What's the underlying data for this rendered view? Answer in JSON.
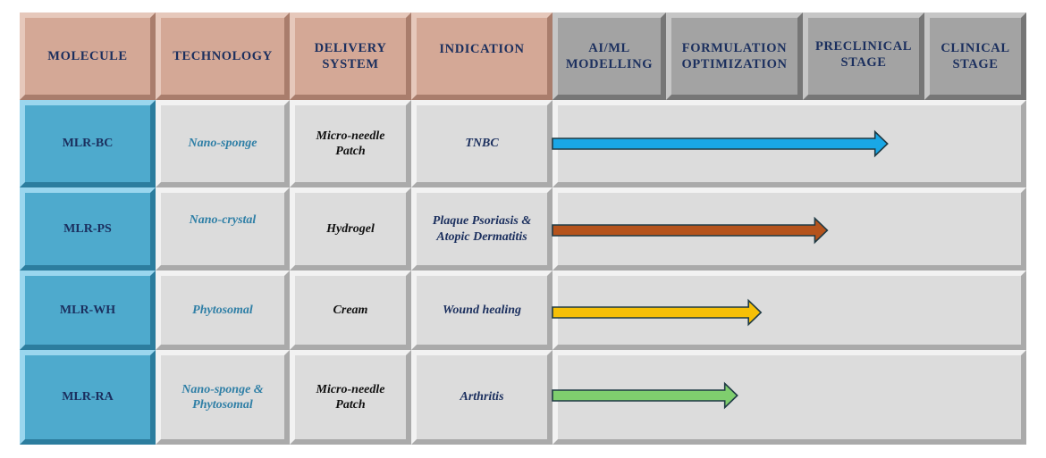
{
  "headers": {
    "molecule": "MOLECULE",
    "technology": "TECHNOLOGY",
    "delivery_system": "DELIVERY\nSYSTEM",
    "indication": "INDICATION",
    "ai_ml": "AI/ML\nMODELLING",
    "formulation": "FORMULATION\nOPTIMIZATION",
    "preclinical": "PRECLINICAL\nSTAGE",
    "clinical": "CLINICAL\nSTAGE"
  },
  "rows": [
    {
      "molecule": "MLR-BC",
      "technology": "Nano-sponge",
      "delivery": "Micro-needle\nPatch",
      "indication": "TNBC",
      "progress": 0.707,
      "color": "#19a7e6"
    },
    {
      "molecule": "MLR-PS",
      "technology": "Nano-crystal",
      "delivery": "Hydrogel",
      "indication": "Plaque Psoriasis &\nAtopic Dermatitis",
      "progress": 0.58,
      "color": "#b5531c"
    },
    {
      "molecule": "MLR-WH",
      "technology": "Phytosomal",
      "delivery": "Cream",
      "indication": "Wound healing",
      "progress": 0.44,
      "color": "#f6c007"
    },
    {
      "molecule": "MLR-RA",
      "technology": "Nano-sponge &\nPhytosomal",
      "delivery": "Micro-needle\nPatch",
      "indication": "Arthritis",
      "progress": 0.39,
      "color": "#7fce6e"
    }
  ]
}
